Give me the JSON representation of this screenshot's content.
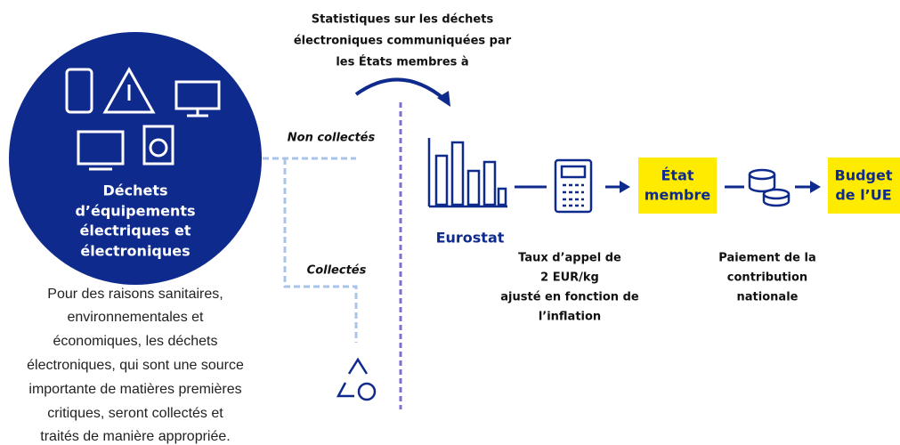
{
  "circle": {
    "label_lines": [
      "Déchets",
      "d’équipements",
      "électriques et",
      "électroniques"
    ]
  },
  "description_lines": [
    "Pour des raisons sanitaires,",
    "environnementales et",
    "économiques, les déchets",
    "électroniques, qui sont une source",
    "importante de matières premières",
    "critiques, seront collectés et",
    "traités de manière appropriée."
  ],
  "top_annotation_lines": [
    "Statistiques sur les déchets",
    "électroniques communiquées par",
    "les États membres à"
  ],
  "branches": {
    "not_collected": "Non collectés",
    "collected": "Collectés"
  },
  "eurostat": "Eurostat",
  "rate_lines": [
    "Taux d’appel de",
    "2 EUR/kg",
    "ajusté en fonction de",
    "l’inflation"
  ],
  "member_state_lines": [
    "État",
    "membre"
  ],
  "eu_budget_lines": [
    "Budget",
    "de l’UE"
  ],
  "payment_lines": [
    "Paiement de la",
    "contribution",
    "nationale"
  ]
}
